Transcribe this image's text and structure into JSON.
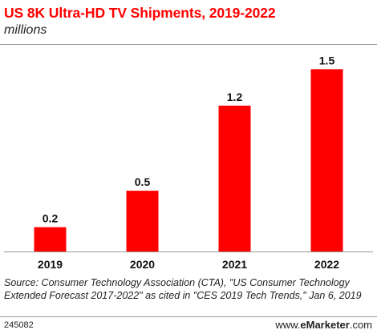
{
  "header": {
    "title": "US 8K Ultra-HD TV Shipments, 2019-2022",
    "subtitle": "millions"
  },
  "colors": {
    "title": "#ff0000",
    "bar": "#ff0000"
  },
  "chart_data": {
    "type": "bar",
    "categories": [
      "2019",
      "2020",
      "2021",
      "2022"
    ],
    "values": [
      0.2,
      0.5,
      1.2,
      1.5
    ],
    "value_labels": [
      "0.2",
      "0.5",
      "1.2",
      "1.5"
    ],
    "title": "US 8K Ultra-HD TV Shipments, 2019-2022",
    "subtitle": "millions",
    "ylim": [
      0,
      1.7
    ],
    "grid": false,
    "legend": "none"
  },
  "footer": {
    "source": "Source: Consumer Technology Association (CTA), \"US Consumer Technology Extended Forecast 2017-2022\" as cited in \"CES 2019 Tech Trends,\" Jan 6, 2019",
    "chart_id": "245082",
    "brand_prefix": "www.",
    "brand_e": "e",
    "brand_name": "Marketer",
    "brand_suffix": ".com"
  }
}
